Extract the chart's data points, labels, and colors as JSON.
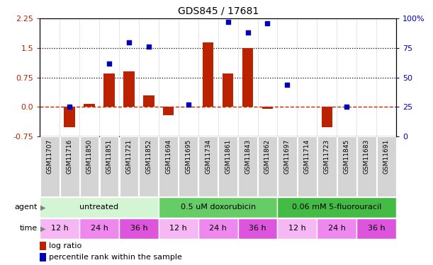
{
  "title": "GDS845 / 17681",
  "samples": [
    "GSM11707",
    "GSM11716",
    "GSM11850",
    "GSM11851",
    "GSM11721",
    "GSM11852",
    "GSM11694",
    "GSM11695",
    "GSM11734",
    "GSM11861",
    "GSM11843",
    "GSM11862",
    "GSM11697",
    "GSM11714",
    "GSM11723",
    "GSM11845",
    "GSM11683",
    "GSM11691"
  ],
  "log_ratio": [
    0.0,
    -0.52,
    0.08,
    0.85,
    0.9,
    0.3,
    -0.2,
    0.0,
    1.65,
    0.85,
    1.5,
    -0.04,
    0.0,
    0.0,
    -0.52,
    0.0,
    0.0,
    0.0
  ],
  "percentile": [
    null,
    25,
    null,
    62,
    80,
    76,
    null,
    27,
    null,
    97,
    88,
    96,
    44,
    null,
    null,
    25,
    null,
    null
  ],
  "agents": [
    {
      "label": "untreated",
      "start": 0,
      "end": 6,
      "color": "#d4f5d4"
    },
    {
      "label": "0.5 uM doxorubicin",
      "start": 6,
      "end": 12,
      "color": "#66cc66"
    },
    {
      "label": "0.06 mM 5-fluorouracil",
      "start": 12,
      "end": 18,
      "color": "#44bb44"
    }
  ],
  "times": [
    {
      "label": "12 h",
      "start": 0,
      "end": 2
    },
    {
      "label": "24 h",
      "start": 2,
      "end": 4
    },
    {
      "label": "36 h",
      "start": 4,
      "end": 6
    },
    {
      "label": "12 h",
      "start": 6,
      "end": 8
    },
    {
      "label": "24 h",
      "start": 8,
      "end": 10
    },
    {
      "label": "36 h",
      "start": 10,
      "end": 12
    },
    {
      "label": "12 h",
      "start": 12,
      "end": 14
    },
    {
      "label": "24 h",
      "start": 14,
      "end": 16
    },
    {
      "label": "36 h",
      "start": 16,
      "end": 18
    }
  ],
  "time_colors": {
    "12 h": "#f5b8f5",
    "24 h": "#ee88ee",
    "36 h": "#dd55dd"
  },
  "ylim_left": [
    -0.75,
    2.25
  ],
  "ylim_right": [
    0,
    100
  ],
  "yticks_left": [
    -0.75,
    0.0,
    0.75,
    1.5,
    2.25
  ],
  "yticks_right": [
    0,
    25,
    50,
    75,
    100
  ],
  "hlines": [
    0.75,
    1.5
  ],
  "bar_color": "#bb2200",
  "dot_color": "#0000bb",
  "zero_line_color": "#cc2200",
  "chart_bg": "#ffffff"
}
